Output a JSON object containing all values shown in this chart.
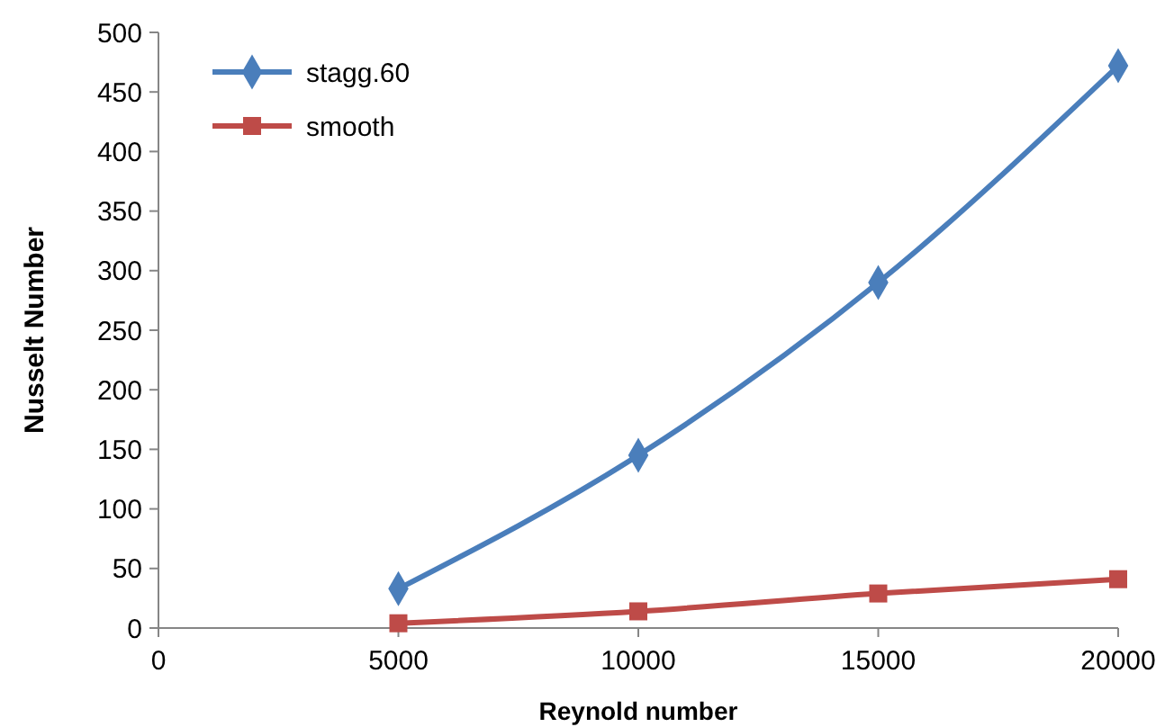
{
  "chart_data": {
    "type": "line",
    "xlabel": "Reynold number",
    "ylabel": "Nusselt Number",
    "x": [
      5000,
      10000,
      15000,
      20000
    ],
    "xlim": [
      0,
      20000
    ],
    "xticks": [
      0,
      5000,
      10000,
      15000,
      20000
    ],
    "ylim": [
      0,
      500
    ],
    "yticks": [
      0,
      50,
      100,
      150,
      200,
      250,
      300,
      350,
      400,
      450,
      500
    ],
    "grid": false,
    "legend": "top left",
    "line_style": "solid",
    "series": [
      {
        "name": "stagg.60",
        "color": "#4a7ebb",
        "marker": "diamond",
        "values": [
          33,
          145,
          290,
          472
        ]
      },
      {
        "name": "smooth",
        "color": "#be4b48",
        "marker": "square",
        "values": [
          4,
          14,
          29,
          41
        ]
      }
    ]
  }
}
